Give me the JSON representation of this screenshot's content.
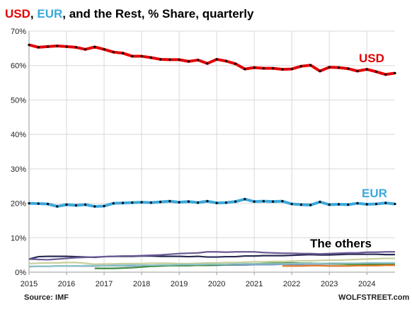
{
  "title": {
    "part_usd": "USD",
    "part_sep1": ", ",
    "part_eur": "EUR",
    "part_rest": ", and the Rest, % Share, quarterly"
  },
  "source": "Source: IMF",
  "brand": "WOLFSTREET.com",
  "colors": {
    "usd": "#e30000",
    "eur": "#3aa9dc",
    "marker": "#000000",
    "grid": "#d9d9d9"
  },
  "chart_data": {
    "type": "line",
    "x_start": "2015 Q1",
    "x_ticks": [
      "2015",
      "2016",
      "2017",
      "2018",
      "2019",
      "2020",
      "2021",
      "2022",
      "2023",
      "2024"
    ],
    "y_ticks": [
      "0%",
      "10%",
      "20%",
      "30%",
      "40%",
      "50%",
      "60%",
      "70%"
    ],
    "ylim": [
      0,
      70
    ],
    "grid": true,
    "annotations": {
      "usd": "USD",
      "eur": "EUR",
      "others": "The others"
    },
    "series": [
      {
        "name": "USD",
        "color": "#e30000",
        "values": [
          66.0,
          65.3,
          65.5,
          65.7,
          65.5,
          65.3,
          64.7,
          65.4,
          64.7,
          63.9,
          63.6,
          62.7,
          62.7,
          62.3,
          61.8,
          61.7,
          61.7,
          61.2,
          61.6,
          60.6,
          61.8,
          61.3,
          60.5,
          59.0,
          59.4,
          59.2,
          59.2,
          58.9,
          59.0,
          59.8,
          60.1,
          58.4,
          59.5,
          59.4,
          59.1,
          58.4,
          58.9,
          58.2,
          57.4,
          57.8
        ]
      },
      {
        "name": "EUR",
        "color": "#3aa9dc",
        "values": [
          20.0,
          19.9,
          19.8,
          19.1,
          19.6,
          19.4,
          19.6,
          19.1,
          19.2,
          20.0,
          20.1,
          20.2,
          20.3,
          20.2,
          20.4,
          20.6,
          20.3,
          20.5,
          20.2,
          20.6,
          20.1,
          20.2,
          20.5,
          21.2,
          20.5,
          20.6,
          20.5,
          20.6,
          19.8,
          19.6,
          19.5,
          20.4,
          19.6,
          19.7,
          19.6,
          20.0,
          19.7,
          19.8,
          20.1,
          19.8
        ]
      }
    ],
    "others": [
      {
        "color": "#2b2b55",
        "values": [
          3.8,
          4.5,
          4.6,
          4.6,
          4.6,
          4.5,
          4.4,
          4.3,
          4.5,
          4.6,
          4.6,
          4.6,
          4.7,
          4.7,
          4.6,
          4.6,
          4.6,
          4.5,
          4.6,
          4.4,
          4.4,
          4.5,
          4.5,
          4.7,
          4.7,
          4.8,
          4.8,
          4.8,
          4.9,
          5.0,
          5.1,
          5.0,
          5.0,
          5.1,
          5.2,
          5.2,
          5.2,
          5.2,
          5.1,
          5.1
        ]
      },
      {
        "color": "#6b5b95",
        "values": [
          3.8,
          3.7,
          3.6,
          3.8,
          4.0,
          4.2,
          4.3,
          4.4,
          4.5,
          4.6,
          4.7,
          4.7,
          4.8,
          4.9,
          5.0,
          5.2,
          5.4,
          5.5,
          5.6,
          5.9,
          5.9,
          5.8,
          5.9,
          5.9,
          5.9,
          5.7,
          5.6,
          5.5,
          5.5,
          5.4,
          5.4,
          5.3,
          5.4,
          5.5,
          5.6,
          5.6,
          5.8,
          5.8,
          5.9,
          5.9
        ]
      },
      {
        "color": "#c8cf9a",
        "values": [
          2.5,
          2.6,
          2.7,
          2.7,
          2.8,
          2.8,
          2.6,
          2.3,
          2.4,
          2.4,
          2.5,
          2.5,
          2.5,
          2.6,
          2.6,
          2.6,
          2.5,
          2.5,
          2.6,
          2.7,
          2.7,
          2.8,
          2.8,
          2.9,
          3.0,
          3.0,
          3.1,
          3.1,
          3.2,
          3.3,
          3.3,
          3.4,
          3.5,
          3.5,
          3.6,
          3.7,
          3.8,
          3.9,
          4.0,
          4.0
        ]
      },
      {
        "color": "#5b7cc0",
        "values": [
          1.6,
          1.7,
          1.7,
          1.8,
          1.8,
          1.8,
          1.8,
          1.8,
          1.9,
          1.9,
          1.9,
          1.9,
          2.0,
          2.0,
          2.0,
          2.0,
          2.0,
          2.0,
          2.0,
          2.0,
          2.0,
          2.1,
          2.1,
          2.1,
          2.2,
          2.2,
          2.2,
          2.3,
          2.3,
          2.3,
          2.4,
          2.4,
          2.4,
          2.4,
          2.4,
          2.5,
          2.5,
          2.5,
          2.5,
          2.6
        ]
      },
      {
        "color": "#3a8a3a",
        "values": [
          null,
          null,
          null,
          null,
          null,
          null,
          null,
          1.1,
          1.1,
          1.1,
          1.2,
          1.3,
          1.5,
          1.7,
          1.8,
          1.9,
          1.9,
          1.9,
          2.0,
          2.0,
          2.1,
          2.2,
          2.3,
          2.4,
          2.4,
          2.5,
          2.6,
          2.6,
          2.7,
          2.6,
          2.6,
          2.5,
          2.5,
          2.4,
          2.3,
          2.3,
          2.2,
          2.2,
          2.2,
          2.2
        ]
      },
      {
        "color": "#e07a2a",
        "values": [
          null,
          null,
          null,
          null,
          null,
          null,
          null,
          null,
          null,
          null,
          null,
          null,
          null,
          null,
          null,
          null,
          null,
          null,
          null,
          null,
          null,
          null,
          null,
          null,
          null,
          null,
          null,
          1.8,
          1.8,
          1.8,
          1.9,
          1.9,
          1.8,
          1.8,
          1.8,
          1.9,
          1.9,
          1.9,
          2.0,
          2.0
        ]
      },
      {
        "color": "#8fc3c8",
        "values": [
          1.7,
          1.7,
          1.7,
          1.8,
          1.8,
          1.8,
          1.9,
          1.9,
          1.9,
          2.0,
          2.0,
          2.1,
          2.0,
          2.0,
          2.1,
          2.1,
          2.2,
          2.2,
          2.2,
          2.3,
          2.3,
          2.3,
          2.4,
          2.4,
          2.4,
          2.4,
          2.4,
          2.4,
          2.5,
          2.5,
          2.5,
          2.5,
          2.6,
          2.6,
          2.6,
          2.6,
          2.7,
          2.7,
          2.7,
          2.7
        ]
      }
    ]
  }
}
